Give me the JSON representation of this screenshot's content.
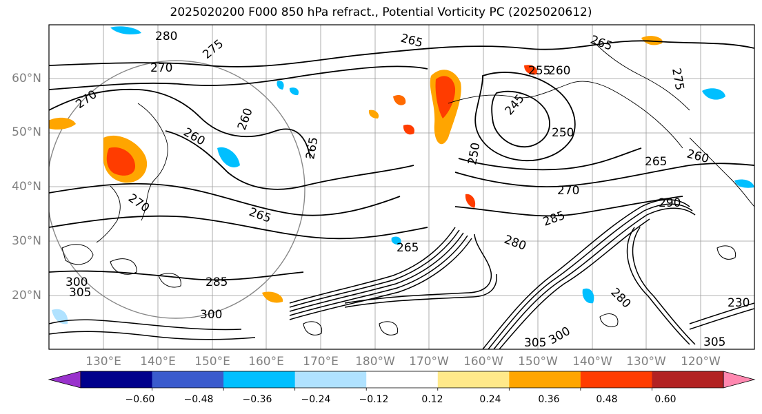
{
  "title": "2025020200 F000 850 hPa refract., Potential Vorticity PC (2025020612)",
  "lat_labels": [
    "60°N",
    "50°N",
    "40°N",
    "30°N",
    "20°N"
  ],
  "lon_labels": [
    "130°E",
    "140°E",
    "150°E",
    "160°E",
    "170°E",
    "180°W",
    "170°W",
    "160°W",
    "150°W",
    "140°W",
    "130°W",
    "120°W"
  ],
  "contour_labels": [
    "280",
    "275",
    "270",
    "270",
    "265",
    "265",
    "265",
    "260",
    "260",
    "260",
    "255",
    "250",
    "250",
    "245",
    "270",
    "265",
    "285",
    "280",
    "270",
    "290",
    "300",
    "305",
    "285",
    "300",
    "305",
    "300",
    "280",
    "230",
    "305",
    "275",
    "260",
    "265",
    "265"
  ],
  "colorbar": {
    "tick_labels": [
      "−0.60",
      "−0.48",
      "−0.36",
      "−0.24",
      "−0.12",
      "0.12",
      "0.24",
      "0.36",
      "0.48",
      "0.60"
    ],
    "colors": [
      "#9932cc",
      "#00008b",
      "#3a5bcd",
      "#00bfff",
      "#b0e2ff",
      "#ffffff",
      "#ffe98a",
      "#ffa500",
      "#ff3c00",
      "#b22222",
      "#ff88b0"
    ]
  }
}
